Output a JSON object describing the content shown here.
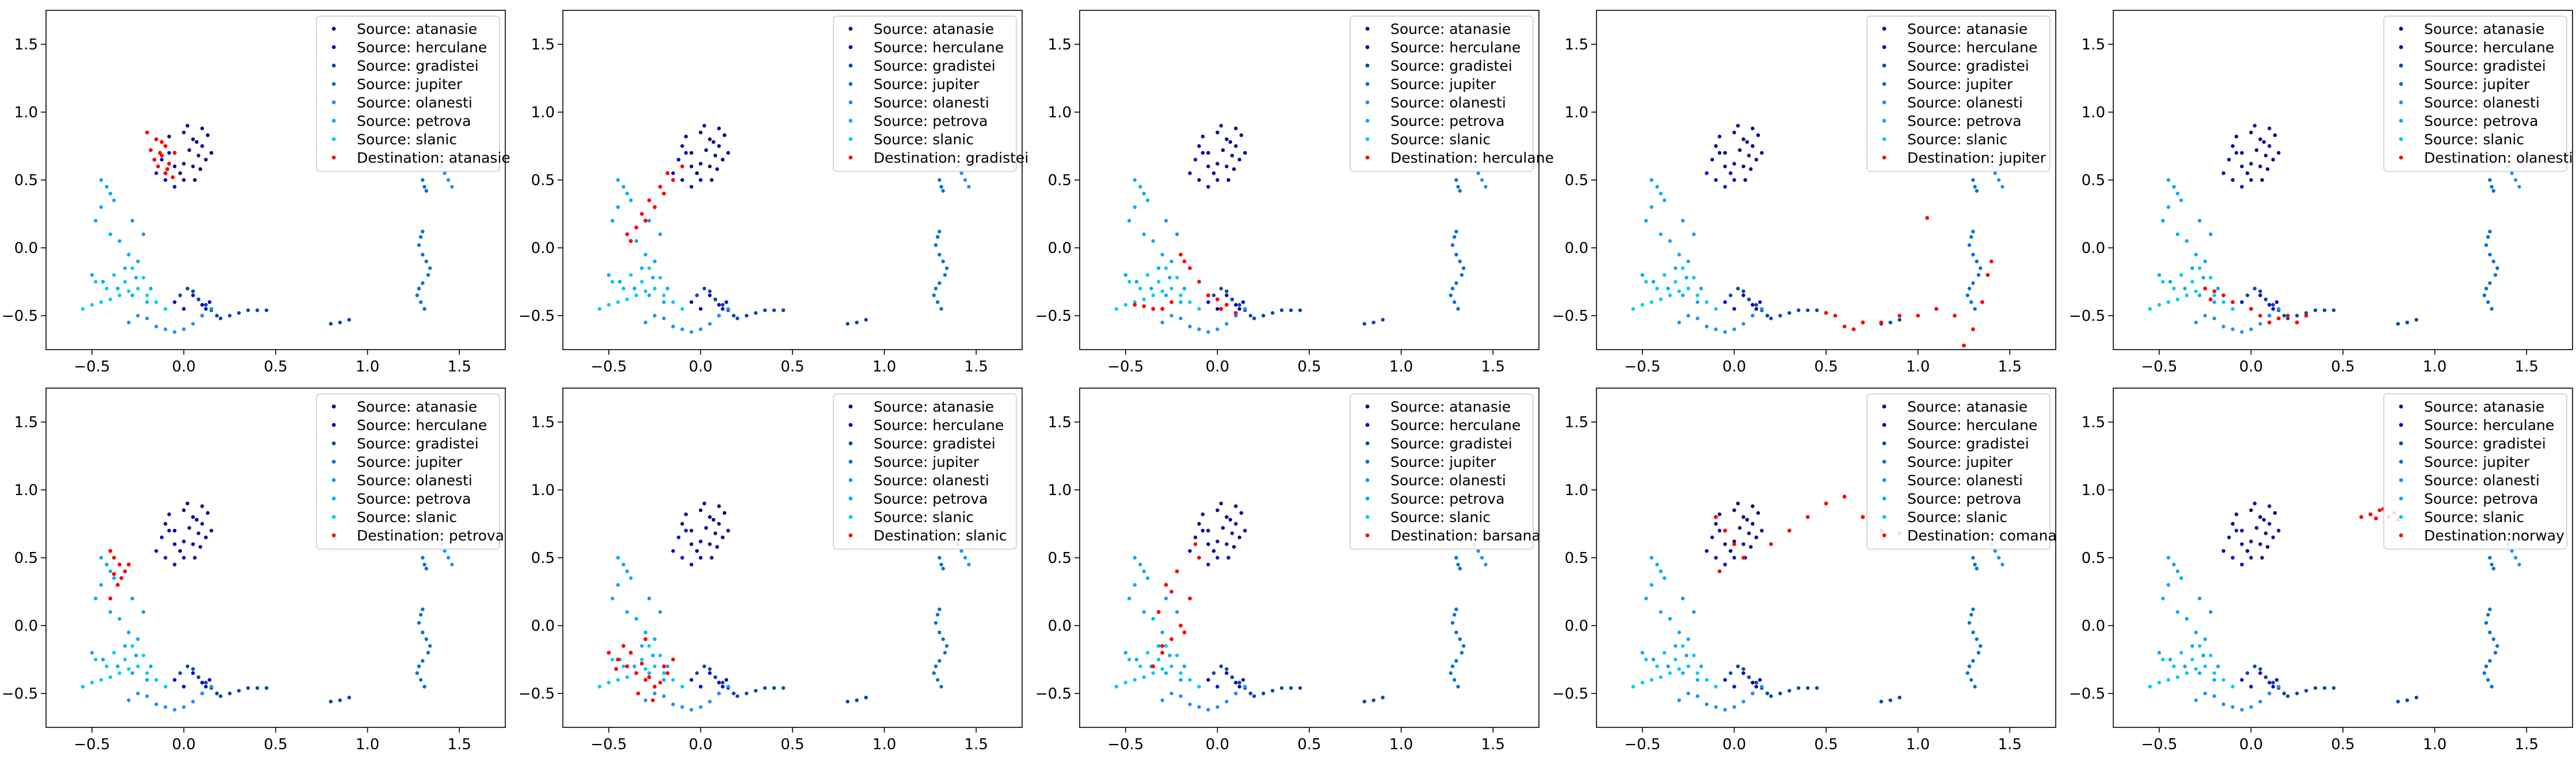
{
  "chart_data": {
    "type": "scatter",
    "layout": "grid of 2 rows x 5 columns of subplots",
    "axes": {
      "xlim": [
        -0.75,
        1.75
      ],
      "ylim": [
        -0.75,
        1.75
      ],
      "xticks": [
        -0.5,
        0.0,
        0.5,
        1.0,
        1.5
      ],
      "yticks": [
        -0.5,
        0.0,
        0.5,
        1.0,
        1.5
      ],
      "xtick_labels": [
        "−0.5",
        "0.0",
        "0.5",
        "1.0",
        "1.5"
      ],
      "ytick_labels": [
        "−0.5",
        "0.0",
        "0.5",
        "1.0",
        "1.5"
      ],
      "grid": false
    },
    "legend_placement": "top-right",
    "source_series": [
      {
        "name": "Source: atanasie",
        "color": "#00008b",
        "x": [
          0.0,
          0.05,
          0.1,
          -0.05,
          0.08,
          0.02,
          -0.08,
          0.12,
          0.05,
          -0.02,
          0.1,
          0.15,
          0.0,
          0.07,
          -0.05,
          0.13,
          0.03,
          0.09,
          -0.1,
          0.06
        ],
        "y": [
          0.85,
          0.8,
          0.75,
          0.7,
          0.68,
          0.9,
          0.82,
          0.65,
          0.6,
          0.55,
          0.88,
          0.7,
          0.62,
          0.78,
          0.6,
          0.83,
          0.72,
          0.58,
          0.75,
          0.5
        ]
      },
      {
        "name": "Source: herculane",
        "color": "#0000cd",
        "x": [
          -0.15,
          -0.1,
          -0.05,
          0.0,
          -0.12,
          -0.08,
          0.05,
          0.08,
          0.1,
          0.12,
          -0.05,
          0.0,
          0.1,
          0.14
        ],
        "y": [
          0.55,
          0.5,
          0.45,
          0.5,
          0.65,
          0.7,
          -0.35,
          -0.38,
          -0.42,
          -0.45,
          -0.4,
          -0.45,
          -0.5,
          -0.4
        ]
      },
      {
        "name": "Source: gradistei",
        "color": "#0047ab",
        "x": [
          -0.02,
          0.02,
          0.05,
          0.08,
          0.12,
          0.15,
          0.18,
          0.2,
          0.25,
          0.3,
          0.35,
          0.4,
          0.45,
          0.8,
          0.85,
          0.9
        ],
        "y": [
          -0.35,
          -0.3,
          -0.32,
          -0.38,
          -0.42,
          -0.46,
          -0.5,
          -0.52,
          -0.5,
          -0.48,
          -0.46,
          -0.46,
          -0.46,
          -0.56,
          -0.55,
          -0.53
        ]
      },
      {
        "name": "Source: jupiter",
        "color": "#0070dd",
        "x": [
          1.3,
          1.31,
          1.32,
          1.3,
          1.29,
          1.28,
          1.3,
          1.32,
          1.34,
          1.33,
          1.3,
          1.28,
          1.27,
          1.29,
          1.31
        ],
        "y": [
          0.5,
          0.45,
          0.42,
          0.12,
          0.08,
          0.02,
          -0.05,
          -0.1,
          -0.15,
          -0.2,
          -0.26,
          -0.3,
          -0.35,
          -0.4,
          -0.45
        ]
      },
      {
        "name": "Source: olanesti",
        "color": "#1e90ff",
        "x": [
          -0.3,
          -0.25,
          -0.2,
          -0.15,
          -0.1,
          -0.05,
          0.0,
          0.05,
          0.1,
          0.15,
          -0.28,
          -0.22,
          1.4,
          1.42,
          1.44,
          1.46
        ],
        "y": [
          -0.55,
          -0.5,
          -0.52,
          -0.58,
          -0.6,
          -0.62,
          -0.6,
          -0.56,
          -0.5,
          -0.45,
          0.2,
          0.1,
          0.6,
          0.55,
          0.5,
          0.45
        ]
      },
      {
        "name": "Source: petrova",
        "color": "#00aaff",
        "x": [
          -0.45,
          -0.42,
          -0.4,
          -0.38,
          -0.45,
          -0.48,
          -0.4,
          -0.35,
          -0.3,
          -0.25,
          -0.32,
          -0.5,
          -0.44,
          -0.36,
          -0.28,
          -0.2,
          -0.18,
          -0.26
        ],
        "y": [
          0.5,
          0.45,
          0.4,
          0.35,
          0.3,
          0.2,
          0.1,
          0.05,
          -0.05,
          -0.1,
          -0.15,
          -0.2,
          -0.25,
          -0.3,
          -0.35,
          -0.4,
          -0.3,
          -0.22
        ]
      },
      {
        "name": "Source: slanic",
        "color": "#00ccee",
        "x": [
          -0.55,
          -0.5,
          -0.45,
          -0.4,
          -0.35,
          -0.3,
          -0.25,
          -0.2,
          -0.15,
          -0.1,
          -0.38,
          -0.32,
          -0.42,
          -0.28,
          -0.22,
          -0.48
        ],
        "y": [
          -0.45,
          -0.42,
          -0.4,
          -0.38,
          -0.35,
          -0.32,
          -0.3,
          -0.35,
          -0.4,
          -0.45,
          -0.2,
          -0.25,
          -0.3,
          -0.15,
          -0.22,
          -0.25
        ]
      }
    ],
    "panels": [
      {
        "destination": "Destination: atanasie",
        "x": [
          -0.2,
          -0.15,
          -0.1,
          -0.05,
          -0.18,
          -0.12,
          -0.08,
          -0.14,
          -0.1,
          -0.06,
          -0.16,
          -0.12,
          -0.09,
          -0.13
        ],
        "y": [
          0.85,
          0.8,
          0.75,
          0.7,
          0.72,
          0.68,
          0.62,
          0.6,
          0.55,
          0.52,
          0.65,
          0.78,
          0.58,
          0.7
        ]
      },
      {
        "destination": "Destination: gradistei",
        "x": [
          -0.4,
          -0.35,
          -0.3,
          -0.25,
          -0.2,
          -0.15,
          -0.1,
          -0.32,
          -0.28,
          -0.22,
          -0.18,
          -0.38
        ],
        "y": [
          0.1,
          0.15,
          0.2,
          0.3,
          0.4,
          0.5,
          0.6,
          0.25,
          0.35,
          0.45,
          0.55,
          0.05
        ]
      },
      {
        "destination": "Destination: herculane",
        "x": [
          -0.45,
          -0.4,
          -0.35,
          -0.3,
          -0.2,
          -0.15,
          -0.1,
          -0.05,
          0.0,
          0.05,
          0.1,
          -0.25,
          -0.18,
          0.02
        ],
        "y": [
          -0.42,
          -0.43,
          -0.45,
          -0.45,
          -0.05,
          -0.15,
          -0.25,
          -0.35,
          -0.38,
          -0.42,
          -0.48,
          -0.4,
          -0.1,
          -0.45
        ]
      },
      {
        "destination": "Destination: jupiter",
        "x": [
          0.5,
          0.55,
          0.6,
          0.65,
          0.7,
          0.8,
          0.9,
          1.0,
          1.1,
          1.2,
          1.25,
          1.3,
          1.35,
          1.38,
          1.4,
          1.05
        ],
        "y": [
          -0.48,
          -0.5,
          -0.58,
          -0.6,
          -0.55,
          -0.55,
          -0.5,
          -0.5,
          -0.45,
          -0.5,
          -0.72,
          -0.6,
          -0.4,
          -0.2,
          -0.1,
          0.22
        ]
      },
      {
        "destination": "Destination: olanesti",
        "x": [
          -0.25,
          -0.2,
          -0.15,
          -0.1,
          0.0,
          0.05,
          0.1,
          0.15,
          0.2,
          0.25,
          0.3,
          -0.22
        ],
        "y": [
          -0.3,
          -0.32,
          -0.35,
          -0.4,
          -0.45,
          -0.5,
          -0.55,
          -0.52,
          -0.5,
          -0.55,
          -0.5,
          -0.38
        ]
      },
      {
        "destination": "Destination: petrova",
        "x": [
          -0.4,
          -0.38,
          -0.35,
          -0.32,
          -0.36,
          -0.4,
          -0.34,
          -0.3,
          -0.38
        ],
        "y": [
          0.55,
          0.5,
          0.45,
          0.4,
          0.3,
          0.2,
          0.35,
          0.45,
          0.38
        ]
      },
      {
        "destination": "Destination: slanic",
        "x": [
          -0.5,
          -0.45,
          -0.4,
          -0.35,
          -0.3,
          -0.25,
          -0.2,
          -0.15,
          -0.42,
          -0.38,
          -0.32,
          -0.28,
          -0.22,
          -0.18,
          -0.46,
          -0.34,
          -0.26,
          -0.3
        ],
        "y": [
          -0.2,
          -0.25,
          -0.3,
          -0.35,
          -0.4,
          -0.45,
          -0.3,
          -0.25,
          -0.15,
          -0.2,
          -0.28,
          -0.38,
          -0.42,
          -0.35,
          -0.32,
          -0.5,
          -0.55,
          -0.1
        ]
      },
      {
        "destination": "Destination: barsana",
        "x": [
          -0.35,
          -0.3,
          -0.25,
          -0.2,
          -0.15,
          -0.1,
          -0.32,
          -0.28,
          -0.22,
          -0.18,
          -0.12,
          -0.3,
          -0.25
        ],
        "y": [
          -0.3,
          -0.2,
          -0.1,
          0.0,
          0.2,
          0.5,
          0.1,
          0.3,
          0.4,
          -0.05,
          0.6,
          -0.15,
          0.25
        ]
      },
      {
        "destination": "Destination: comana",
        "x": [
          -0.1,
          -0.05,
          0.0,
          0.05,
          0.2,
          0.3,
          0.4,
          0.5,
          0.6,
          0.7,
          0.8,
          0.9,
          -0.08
        ],
        "y": [
          0.8,
          0.7,
          0.6,
          0.5,
          0.6,
          0.7,
          0.8,
          0.9,
          0.95,
          0.8,
          0.7,
          0.68,
          0.4
        ]
      },
      {
        "destination": "Destination:norway",
        "x": [
          0.6,
          0.65,
          0.7,
          0.75,
          0.8,
          0.72,
          0.68,
          0.78
        ],
        "y": [
          0.8,
          0.82,
          0.85,
          0.8,
          0.78,
          0.86,
          0.79,
          0.83
        ]
      }
    ],
    "destination_color": "#ff0000"
  }
}
